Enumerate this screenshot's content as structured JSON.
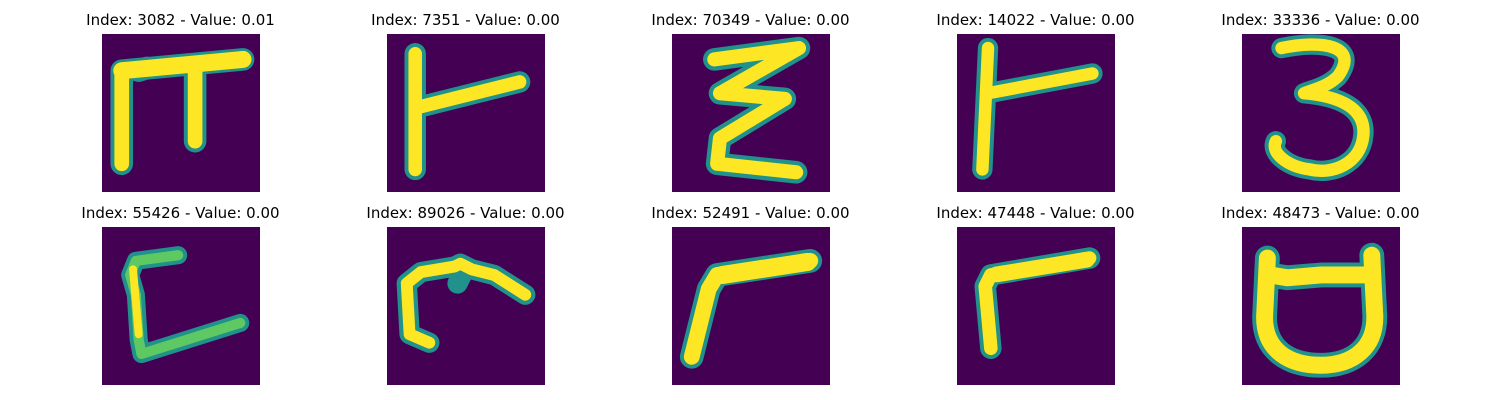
{
  "colors": {
    "background": "#440154",
    "glyph_edge": "#21918c",
    "glyph_mid": "#5ec962",
    "glyph_core": "#fde725"
  },
  "panels": [
    {
      "title": "Index: 3082 - Value: 0.01",
      "glyph": "pi-shape-icon"
    },
    {
      "title": "Index: 7351 - Value: 0.00",
      "glyph": "vertical-stroke-with-branch-icon"
    },
    {
      "title": "Index: 70349 - Value: 0.00",
      "glyph": "epsilon-shape-icon"
    },
    {
      "title": "Index: 14022 - Value: 0.00",
      "glyph": "vertical-stroke-with-branch-icon"
    },
    {
      "title": "Index: 33336 - Value: 0.00",
      "glyph": "digit-three-icon"
    },
    {
      "title": "Index: 55426 - Value: 0.00",
      "glyph": "open-bracket-shape-icon"
    },
    {
      "title": "Index: 89026 - Value: 0.00",
      "glyph": "hook-shape-icon"
    },
    {
      "title": "Index: 52491 - Value: 0.00",
      "glyph": "gamma-shape-icon"
    },
    {
      "title": "Index: 47448 - Value: 0.00",
      "glyph": "gamma-shape-icon"
    },
    {
      "title": "Index: 48473 - Value: 0.00",
      "glyph": "cup-shape-icon"
    }
  ]
}
